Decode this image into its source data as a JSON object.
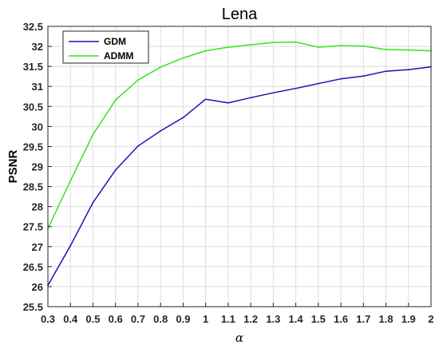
{
  "chart_data": {
    "type": "line",
    "title": "Lena",
    "xlabel": "α",
    "ylabel": "PSNR",
    "x": [
      0.3,
      0.4,
      0.5,
      0.6,
      0.7,
      0.8,
      0.9,
      1.0,
      1.1,
      1.2,
      1.3,
      1.4,
      1.5,
      1.6,
      1.7,
      1.8,
      1.9,
      2.0
    ],
    "xticks": [
      "0.3",
      "0.4",
      "0.5",
      "0.6",
      "0.7",
      "0.8",
      "0.9",
      "1",
      "1.1",
      "1.2",
      "1.3",
      "1.4",
      "1.5",
      "1.6",
      "1.7",
      "1.8",
      "1.9",
      "2"
    ],
    "yticks": [
      "25.5",
      "26",
      "26.5",
      "27",
      "27.5",
      "28",
      "28.5",
      "29",
      "29.5",
      "30",
      "30.5",
      "31",
      "31.5",
      "32",
      "32.5"
    ],
    "xlim": [
      0.3,
      2.0
    ],
    "ylim": [
      25.5,
      32.5
    ],
    "grid": true,
    "legend_position": "top-left",
    "series": [
      {
        "name": "GDM",
        "color": "#1414b8",
        "values": [
          26.03,
          27.02,
          28.1,
          28.91,
          29.51,
          29.89,
          30.22,
          30.68,
          30.59,
          30.72,
          30.84,
          30.95,
          31.07,
          31.19,
          31.26,
          31.38,
          31.42,
          31.49
        ]
      },
      {
        "name": "ADMM",
        "color": "#33e61a",
        "values": [
          27.45,
          28.64,
          29.8,
          30.66,
          31.16,
          31.48,
          31.71,
          31.89,
          31.98,
          32.04,
          32.1,
          32.11,
          31.98,
          32.02,
          32.01,
          31.92,
          31.91,
          31.89
        ]
      }
    ]
  }
}
